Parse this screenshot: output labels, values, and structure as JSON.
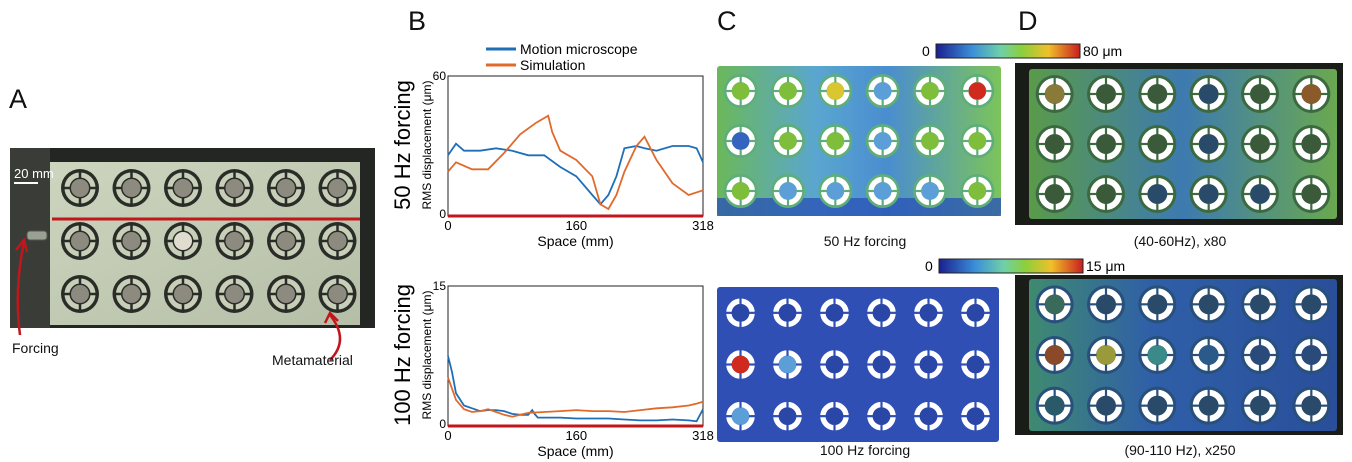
{
  "panels": {
    "a": "A",
    "b": "B",
    "c": "C",
    "d": "D"
  },
  "photo": {
    "scale_bar_label": "20 mm",
    "forcing_label": "Forcing",
    "metamaterial_label": "Metamaterial"
  },
  "colorbars": [
    {
      "min_label": "0",
      "max_label": "80 μm"
    },
    {
      "min_label": "0",
      "max_label": "15 μm"
    }
  ],
  "captions": {
    "c_top": "50 Hz forcing",
    "c_bottom": "100 Hz forcing",
    "d_top": "(40-60Hz), x80",
    "d_bottom": "(90-110 Hz), x250"
  },
  "colors": {
    "motion_microscope": "#1f6fb8",
    "simulation": "#e06a2c",
    "measurement_line": "#c0161c"
  },
  "chart_data": [
    {
      "type": "line",
      "row_label": "50 Hz forcing",
      "xlabel": "Space (mm)",
      "ylabel": "RMS displacement (μm)",
      "xlim": [
        0,
        318
      ],
      "ylim": [
        0,
        60
      ],
      "xticks": [
        "0",
        "160",
        "318"
      ],
      "yticks": [
        "0",
        "60"
      ],
      "series": [
        {
          "name": "Motion microscope",
          "x": [
            0,
            10,
            20,
            40,
            60,
            80,
            100,
            110,
            120,
            140,
            160,
            180,
            190,
            200,
            210,
            220,
            235,
            245,
            260,
            280,
            300,
            310,
            318
          ],
          "y": [
            26,
            31,
            28,
            28,
            29,
            28,
            26,
            26,
            26,
            21,
            17,
            9,
            5,
            9,
            17,
            29,
            30,
            29,
            28,
            30,
            30,
            29,
            23
          ]
        },
        {
          "name": "Simulation",
          "x": [
            0,
            10,
            30,
            50,
            70,
            90,
            110,
            125,
            130,
            140,
            160,
            180,
            190,
            200,
            210,
            220,
            235,
            245,
            260,
            280,
            300,
            318
          ],
          "y": [
            19,
            23,
            20,
            20,
            27,
            35,
            40,
            43,
            36,
            28,
            24,
            17,
            5,
            3,
            9,
            19,
            30,
            34,
            24,
            14,
            9,
            11
          ]
        }
      ]
    },
    {
      "type": "line",
      "row_label": "100 Hz forcing",
      "xlabel": "Space (mm)",
      "ylabel": "RMS displacement (μm)",
      "xlim": [
        0,
        318
      ],
      "ylim": [
        0,
        15
      ],
      "xticks": [
        "0",
        "160",
        "318"
      ],
      "yticks": [
        "0",
        "15"
      ],
      "series": [
        {
          "name": "Motion microscope",
          "x": [
            0,
            5,
            10,
            20,
            30,
            40,
            50,
            60,
            70,
            80,
            90,
            100,
            105,
            108,
            112,
            120,
            140,
            160,
            180,
            200,
            220,
            240,
            260,
            280,
            300,
            310,
            318
          ],
          "y": [
            7.5,
            5.8,
            3.5,
            2.2,
            1.9,
            1.6,
            1.7,
            1.7,
            1.6,
            1.3,
            1.2,
            1.2,
            1.7,
            1.3,
            0.9,
            0.9,
            0.9,
            0.8,
            0.8,
            0.8,
            0.7,
            0.6,
            0.6,
            0.7,
            0.6,
            0.5,
            1.8
          ]
        },
        {
          "name": "Simulation",
          "x": [
            0,
            5,
            10,
            20,
            30,
            40,
            50,
            60,
            70,
            80,
            90,
            100,
            120,
            140,
            160,
            180,
            200,
            220,
            240,
            260,
            280,
            300,
            310,
            318
          ],
          "y": [
            5.2,
            4.0,
            2.8,
            1.8,
            1.5,
            1.6,
            1.8,
            1.5,
            1.2,
            1.0,
            1.2,
            1.4,
            1.5,
            1.6,
            1.7,
            1.6,
            1.6,
            1.5,
            1.7,
            1.9,
            2.0,
            2.2,
            2.4,
            2.6
          ]
        }
      ]
    }
  ]
}
